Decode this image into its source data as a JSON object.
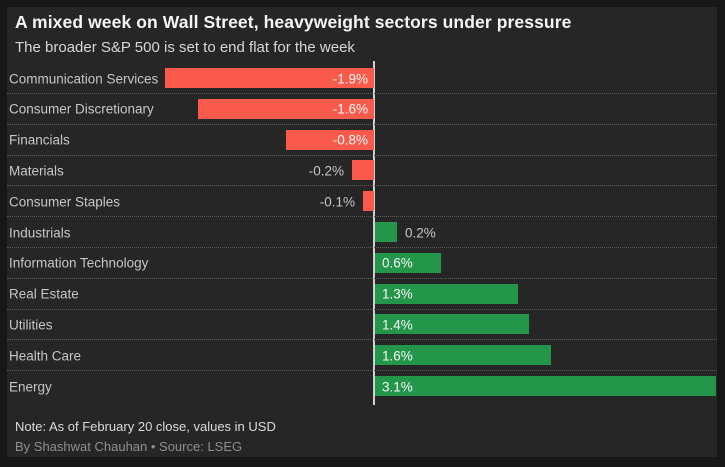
{
  "header": {
    "title": "A mixed week on Wall Street, heavyweight sectors under pressure",
    "subtitle": "The broader S&P 500 is set to end flat for the week"
  },
  "footer": {
    "note": "Note: As of February 20 close, values in USD",
    "byline": "By Shashwat Chauhan • Source: LSEG"
  },
  "chart_data": {
    "type": "bar",
    "orientation": "horizontal",
    "title": "A mixed week on Wall Street, heavyweight sectors under pressure",
    "subtitle": "The broader S&P 500 is set to end flat for the week",
    "categories": [
      "Communication Services",
      "Consumer Discretionary",
      "Financials",
      "Materials",
      "Consumer Staples",
      "Industrials",
      "Information Technology",
      "Real Estate",
      "Utilities",
      "Health Care",
      "Energy"
    ],
    "values": [
      -1.9,
      -1.6,
      -0.8,
      -0.2,
      -0.1,
      0.2,
      0.6,
      1.3,
      1.4,
      1.6,
      3.1
    ],
    "value_labels": [
      "-1.9%",
      "-1.6%",
      "-0.8%",
      "-0.2%",
      "-0.1%",
      "0.2%",
      "0.6%",
      "1.3%",
      "1.4%",
      "1.6%",
      "3.1%"
    ],
    "xlabel": "",
    "ylabel": "",
    "xlim": [
      -1.9,
      3.1
    ],
    "unit": "%",
    "grid": "dotted row separators, vertical zero axis line",
    "legend": "none",
    "colors": {
      "negative_bar": "#fa5a4b",
      "positive_bar": "#23964a",
      "zero_line": "#cfcfcf",
      "panel_background": "#262626",
      "outer_background": "#171717",
      "category_label": "#c6c6c6",
      "inside_value_label": "#f7f7f7",
      "outside_value_label": "#c6c6c6"
    }
  }
}
